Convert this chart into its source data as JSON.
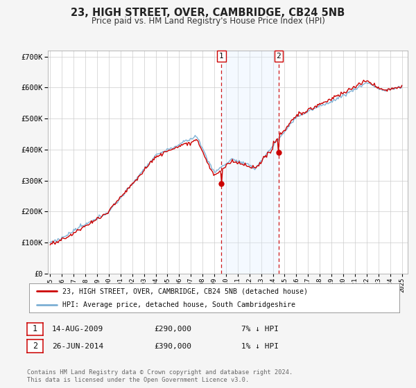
{
  "title": "23, HIGH STREET, OVER, CAMBRIDGE, CB24 5NB",
  "subtitle": "Price paid vs. HM Land Registry's House Price Index (HPI)",
  "legend_line1": "23, HIGH STREET, OVER, CAMBRIDGE, CB24 5NB (detached house)",
  "legend_line2": "HPI: Average price, detached house, South Cambridgeshire",
  "footnote1": "Contains HM Land Registry data © Crown copyright and database right 2024.",
  "footnote2": "This data is licensed under the Open Government Licence v3.0.",
  "event1_label": "1",
  "event1_date": "14-AUG-2009",
  "event1_price": "£290,000",
  "event1_hpi": "7% ↓ HPI",
  "event1_x": 2009.617,
  "event1_y": 290000,
  "event2_label": "2",
  "event2_date": "26-JUN-2014",
  "event2_price": "£390,000",
  "event2_hpi": "1% ↓ HPI",
  "event2_x": 2014.486,
  "event2_y": 390000,
  "hpi_color": "#7bafd4",
  "price_color": "#cc0000",
  "shade_color": "#ddeeff",
  "ylim": [
    0,
    720000
  ],
  "xlim_start": 1994.8,
  "xlim_end": 2025.5,
  "background_color": "#f5f5f5",
  "plot_bg_color": "#ffffff"
}
